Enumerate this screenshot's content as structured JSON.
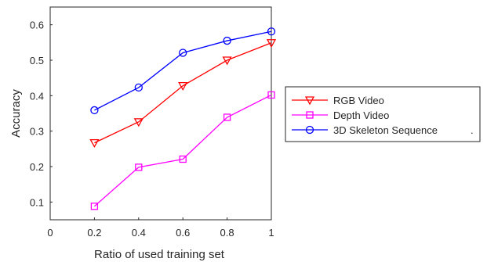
{
  "chart_data": {
    "type": "line",
    "title": "",
    "xlabel": "Ratio of used training set",
    "ylabel": "Accuracy",
    "x": [
      0.2,
      0.4,
      0.6,
      0.8,
      1.0
    ],
    "xlim": [
      0,
      1
    ],
    "ylim": [
      0.05,
      0.65
    ],
    "xticks": [
      0,
      0.2,
      0.4,
      0.6,
      0.8,
      1
    ],
    "xtick_labels": [
      "0",
      "0.2",
      "0.4",
      "0.6",
      "0.8",
      "1"
    ],
    "yticks": [
      0.1,
      0.2,
      0.3,
      0.4,
      0.5,
      0.6
    ],
    "ytick_labels": [
      "0.1",
      "0.2",
      "0.3",
      "0.4",
      "0.5",
      "0.6"
    ],
    "grid": false,
    "legend_position": "outside-right",
    "series": [
      {
        "name": "RGB Video",
        "values": [
          0.267,
          0.326,
          0.428,
          0.5,
          0.549
        ],
        "color": "#ff0000",
        "marker": "triangle-down"
      },
      {
        "name": "Depth Video",
        "values": [
          0.088,
          0.198,
          0.221,
          0.339,
          0.402
        ],
        "color": "#ff00ff",
        "marker": "square"
      },
      {
        "name": "3D Skeleton Sequence",
        "values": [
          0.359,
          0.423,
          0.521,
          0.555,
          0.581
        ],
        "color": "#0000ff",
        "marker": "circle"
      }
    ],
    "legend_extra_mark": "."
  }
}
